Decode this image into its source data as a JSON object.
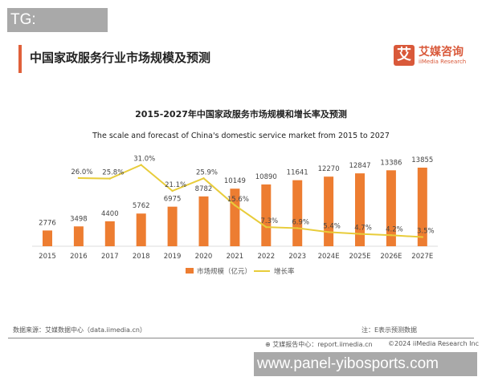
{
  "watermarks": {
    "top": "TG: MYYJJPP",
    "bottom": "www.panel-yibosports.com"
  },
  "header": {
    "title": "中国家政服务行业市场规模及预测",
    "logo_mark": "艾",
    "logo_cn": "艾媒咨询",
    "logo_en": "iiMedia Research"
  },
  "footer": {
    "source": "数据来源：艾媒数据中心（data.iimedia.cn）",
    "note": "注：E表示预测数据",
    "report": "艾媒报告中心：report.iimedia.cn",
    "copyright": "©2024  iiMedia Research Inc"
  },
  "colors": {
    "bar": "#ED7D31",
    "line": "#E8CC3A",
    "accent": "#E0603A"
  },
  "chart_data": {
    "type": "bar+line",
    "title": "2015-2027年中国家政服务市场规模和增长率及预测",
    "subtitle": "The scale and forecast of China's domestic service market from 2015 to 2027",
    "categories": [
      "2015",
      "2016",
      "2017",
      "2018",
      "2019",
      "2020",
      "2021",
      "2022",
      "2023",
      "2024E",
      "2025E",
      "2026E",
      "2027E"
    ],
    "series": [
      {
        "name": "市场规模（亿元）",
        "type": "bar",
        "values": [
          2776,
          3498,
          4400,
          5762,
          6975,
          8782,
          10149,
          10890,
          11641,
          12270,
          12847,
          13386,
          13855
        ]
      },
      {
        "name": "增长率",
        "type": "line",
        "values": [
          null,
          26.0,
          25.8,
          31.0,
          21.1,
          25.9,
          15.6,
          7.3,
          6.9,
          5.4,
          4.7,
          4.2,
          3.5
        ],
        "labels": [
          "",
          "26.0%",
          "25.8%",
          "31.0%",
          "21.1%",
          "25.9%",
          "15.6%",
          "7.3%",
          "6.9%",
          "5.4%",
          "4.7%",
          "4.2%",
          "3.5%"
        ]
      }
    ],
    "legend": "bottom",
    "grid": false
  }
}
